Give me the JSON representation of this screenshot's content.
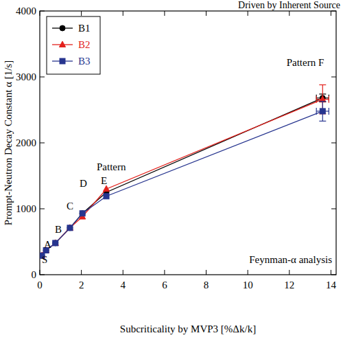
{
  "chart_data": {
    "type": "line",
    "title": "Driven by Inherent Source",
    "x_label": "Subcriticality by MVP3 [%Δk/k]",
    "y_label": "Prompt-Neutron Decay Constant α [1/s]",
    "x": [
      0.1,
      0.3,
      0.75,
      1.45,
      2.05,
      3.2,
      13.6
    ],
    "series": [
      {
        "name": "B1",
        "color": "#000000",
        "marker": "circle",
        "line_style": "solid",
        "values": [
          290,
          370,
          480,
          710,
          930,
          1250,
          2680
        ],
        "errors": [
          null,
          null,
          null,
          null,
          null,
          null,
          60
        ],
        "x_errors": [
          null,
          null,
          null,
          null,
          null,
          null,
          0.3
        ]
      },
      {
        "name": "B2",
        "color": "#e3211c",
        "marker": "triangle",
        "line_style": "solid",
        "values": [
          290,
          370,
          480,
          710,
          880,
          1300,
          2660
        ],
        "errors": [
          null,
          null,
          null,
          null,
          null,
          null,
          220
        ],
        "x_errors": [
          null,
          null,
          null,
          null,
          null,
          null,
          0.3
        ]
      },
      {
        "name": "B3",
        "color": "#27358f",
        "marker": "square",
        "line_style": "solid",
        "values": [
          290,
          370,
          480,
          710,
          930,
          1190,
          2480
        ],
        "errors": [
          null,
          null,
          null,
          null,
          null,
          null,
          150
        ],
        "x_errors": [
          null,
          null,
          null,
          null,
          null,
          null,
          0.3
        ]
      }
    ],
    "annotations": [
      "S",
      "A",
      "B",
      "C",
      "D",
      "Pattern",
      "E",
      "Pattern F",
      "Feynman-α analysis"
    ],
    "xlim": [
      0,
      14.25
    ],
    "ylim": [
      0,
      4000
    ],
    "xticks": [
      0,
      2,
      4,
      6,
      8,
      10,
      12,
      14
    ],
    "yticks": [
      0,
      1000,
      2000,
      3000,
      4000
    ],
    "grid": false,
    "legend": "upper left"
  }
}
